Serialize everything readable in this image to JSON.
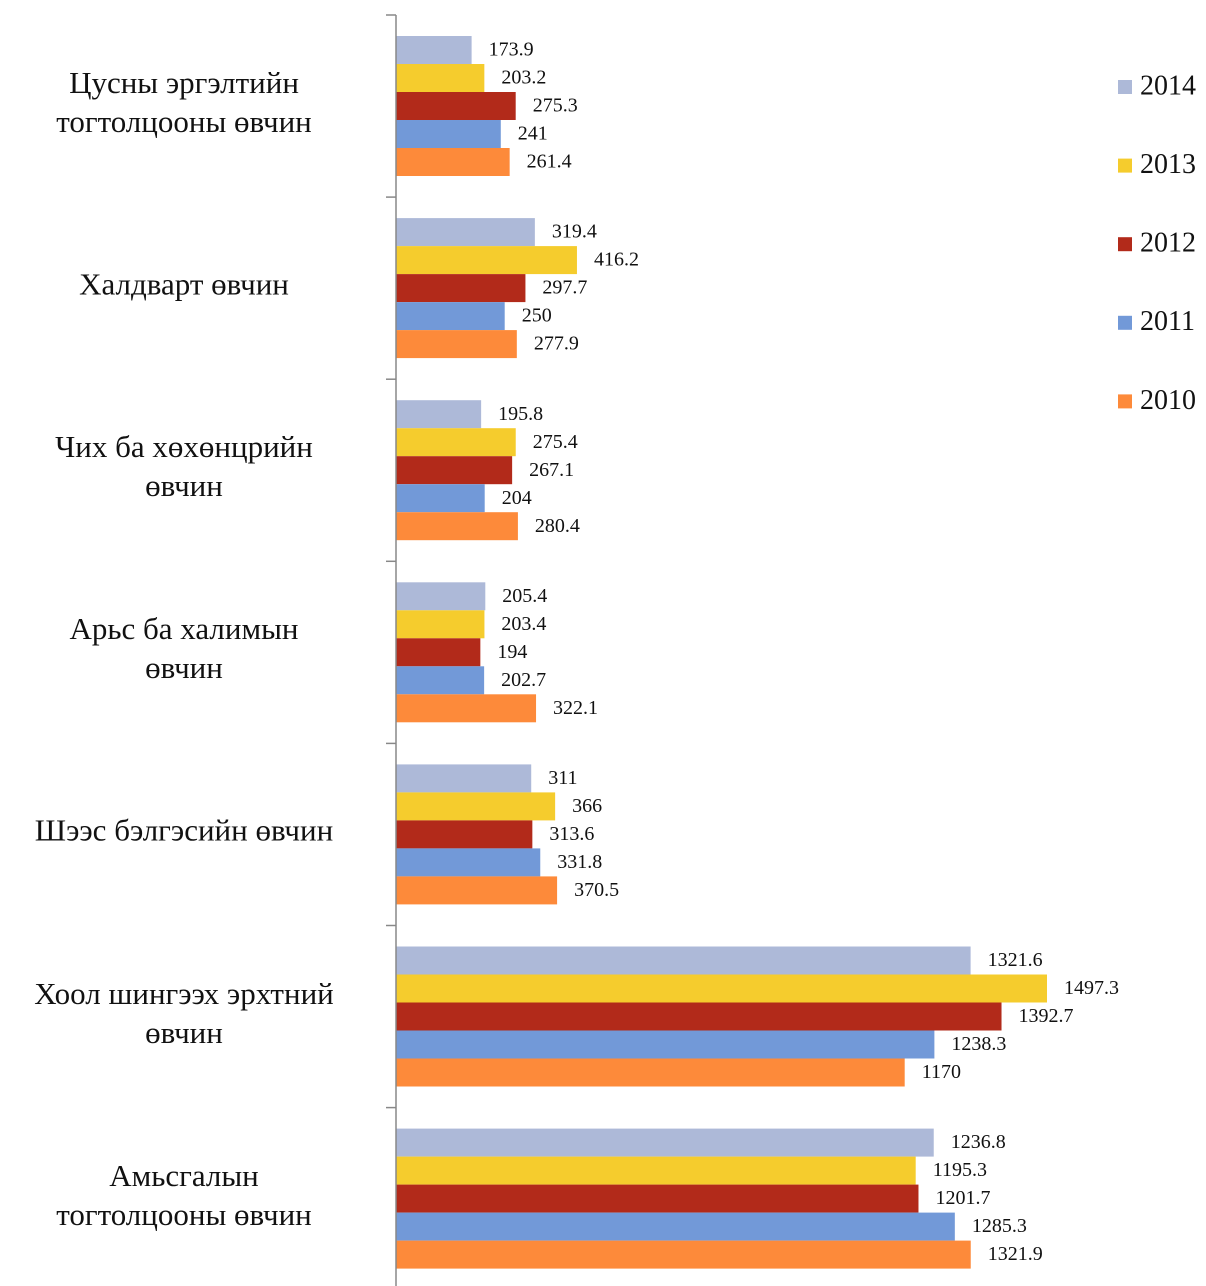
{
  "chart_data": {
    "type": "hbar",
    "categories": [
      "Цусны эргэлтийн\nтогтолцооны өвчин",
      "Халдварт өвчин",
      "Чих ба хөхөнцрийн\nөвчин",
      "Арьс ба халимын\nөвчин",
      "Шээс бэлгэсийн өвчин",
      "Хоол шингээх эрхтний\nөвчин",
      "Амьсгалын\nтогтолцооны өвчин"
    ],
    "series": [
      {
        "name": "2014",
        "color": "#adb9d8",
        "values": [
          173.9,
          319.4,
          195.8,
          205.4,
          311,
          1321.6,
          1236.8
        ]
      },
      {
        "name": "2013",
        "color": "#f5cc2d",
        "values": [
          203.2,
          416.2,
          275.4,
          203.4,
          366,
          1497.3,
          1195.3
        ]
      },
      {
        "name": "2012",
        "color": "#b22a1a",
        "values": [
          275.3,
          297.7,
          267.1,
          194,
          313.6,
          1392.7,
          1201.7
        ]
      },
      {
        "name": "2011",
        "color": "#7299d8",
        "values": [
          241,
          250,
          204,
          202.7,
          331.8,
          1238.3,
          1285.3
        ]
      },
      {
        "name": "2010",
        "color": "#fd8a3a",
        "values": [
          261.4,
          277.9,
          280.4,
          322.1,
          370.5,
          1170,
          1321.9
        ]
      }
    ],
    "legend": "right"
  }
}
